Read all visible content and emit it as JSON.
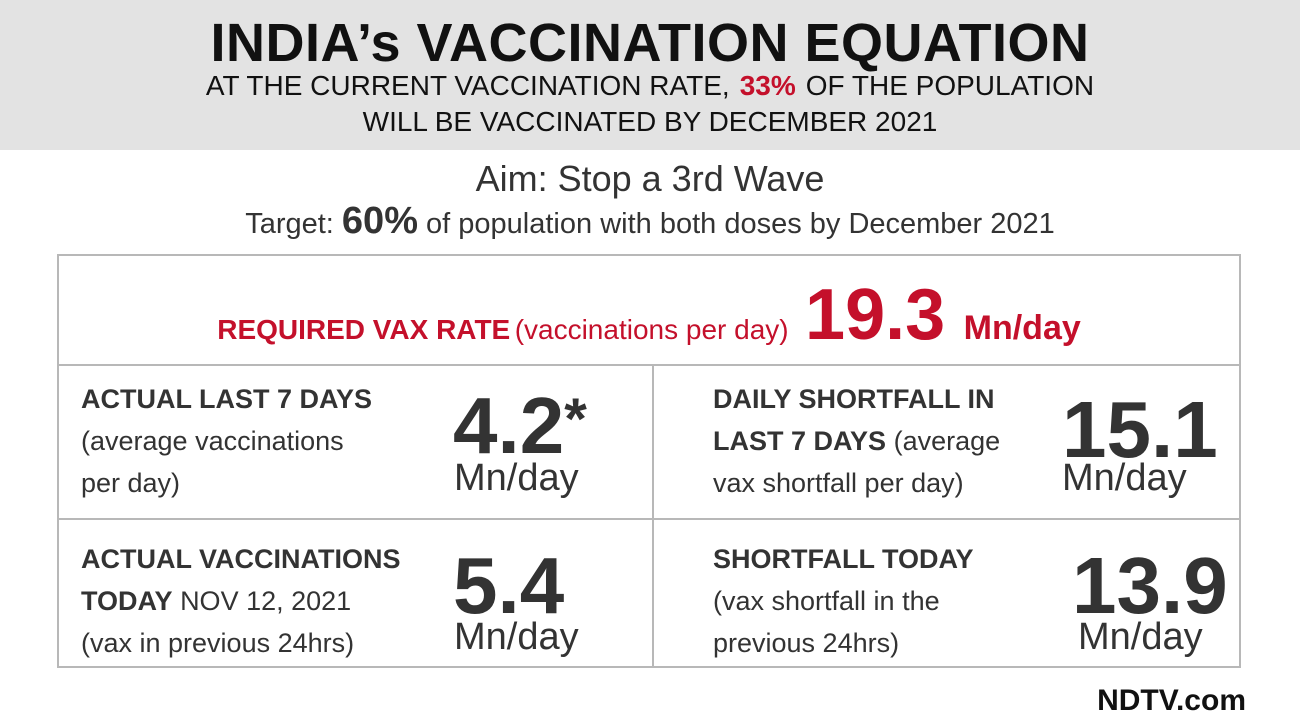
{
  "header": {
    "title": "INDIA’s VACCINATION EQUATION",
    "line1_prefix": "AT THE CURRENT VACCINATION RATE,",
    "line1_percent": "33%",
    "line1_suffix": "OF THE POPULATION",
    "line2": "WILL BE VACCINATED BY DECEMBER 2021"
  },
  "aim": "Aim: Stop a 3rd Wave",
  "target": {
    "prefix": "Target:",
    "percent": "60%",
    "suffix": "of population with both doses by December 2021"
  },
  "required": {
    "label": "REQUIRED VAX RATE",
    "desc": "(vaccinations per day)",
    "value": "19.3",
    "unit": "Mn/day"
  },
  "cells": [
    {
      "bold1": "ACTUAL LAST 7 DAYS",
      "normal1": "(average vaccinations",
      "normal2": "per day)",
      "value": "4.2",
      "star": "*",
      "unit": "Mn/day"
    },
    {
      "bold1": "DAILY SHORTFALL IN",
      "bold2": "LAST 7 DAYS",
      "normal1": "(average",
      "normal2": "vax shortfall per day)",
      "value": "15.1",
      "unit": "Mn/day"
    },
    {
      "bold1": "ACTUAL VACCINATIONS",
      "bold2": "TODAY",
      "normal1": "NOV 12, 2021",
      "normal2": "(vax in previous 24hrs)",
      "value": "5.4",
      "unit": "Mn/day"
    },
    {
      "bold1": "SHORTFALL TODAY",
      "normal1": "(vax shortfall in the",
      "normal2": "previous 24hrs)",
      "value": "13.9",
      "unit": "Mn/day"
    }
  ],
  "logo": "NDTV.com"
}
